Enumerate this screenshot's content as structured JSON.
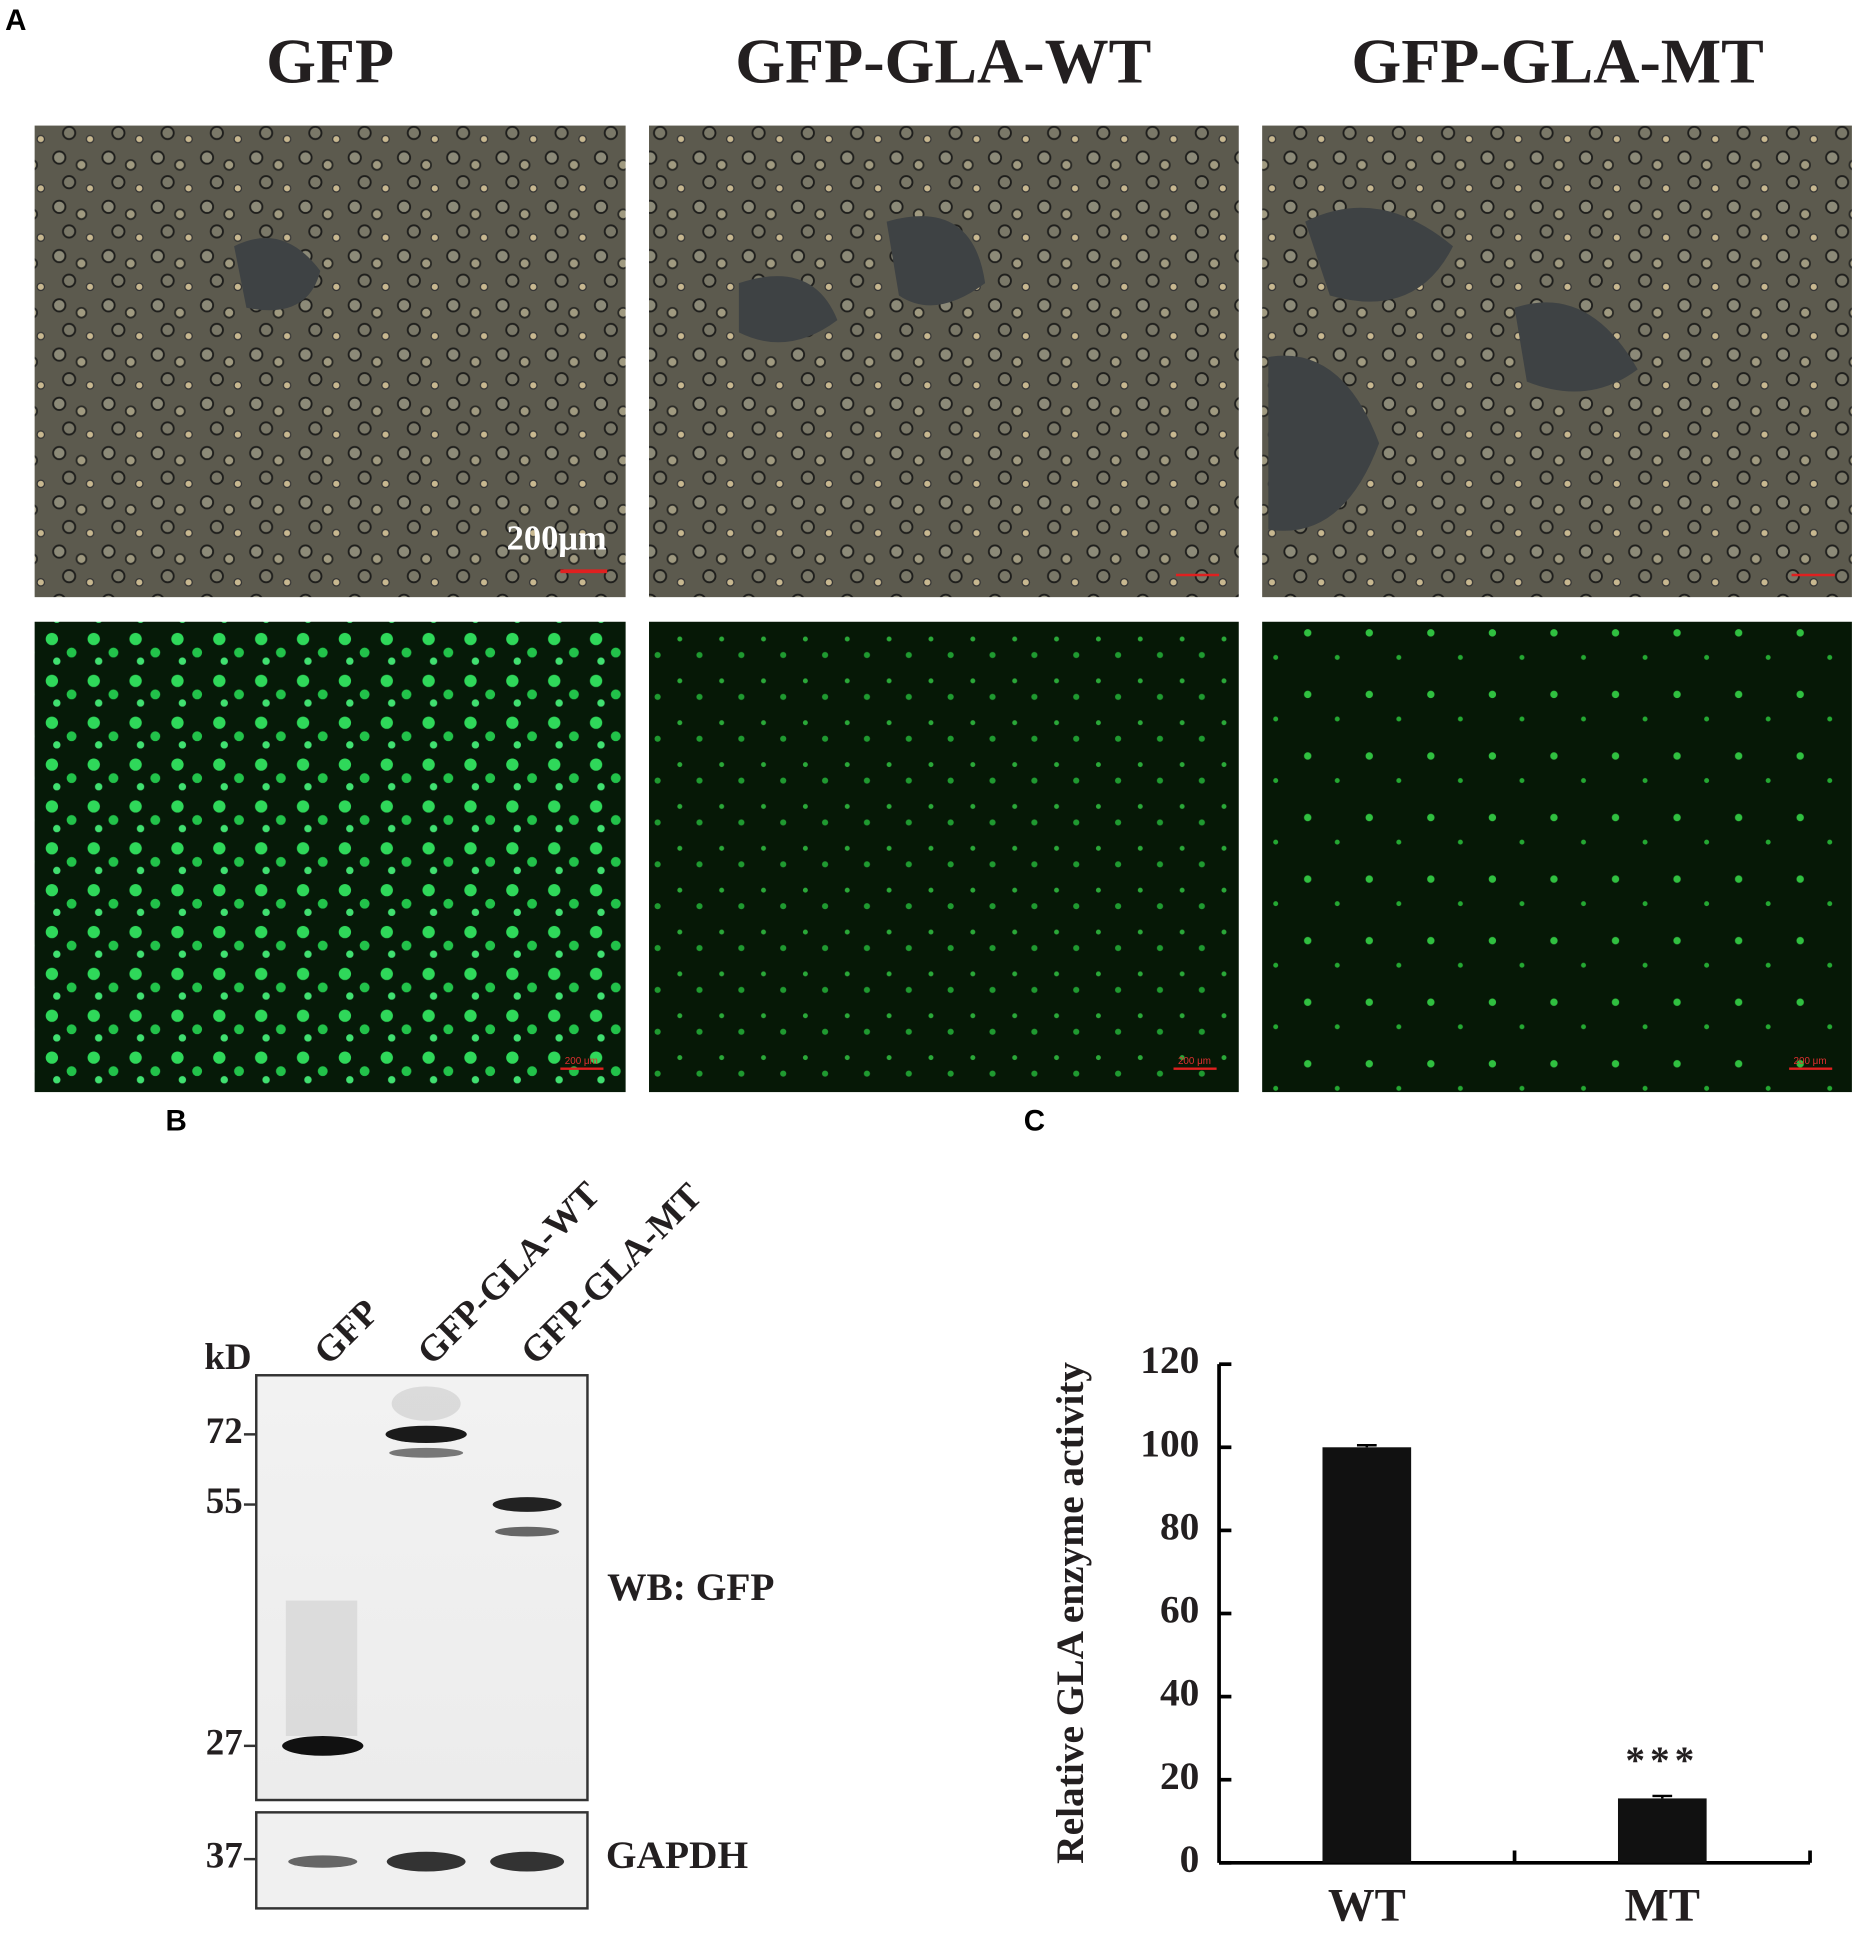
{
  "panel_a": {
    "label": "A",
    "titles": [
      "GFP",
      "GFP-GLA-WT",
      "GFP-GLA-MT"
    ],
    "scale_label": "200μm",
    "small_scale_label": "200 μm"
  },
  "panel_b": {
    "label": "B",
    "lanes": [
      "GFP",
      "GFP-GLA-WT",
      "GFP-GLA-MT"
    ],
    "unit": "kD",
    "markers": [
      72,
      55,
      27
    ],
    "loading_marker": 37,
    "blot_label": "WB: GFP",
    "loading_label": "GAPDH"
  },
  "panel_c": {
    "label": "C"
  },
  "chart_data": {
    "type": "bar",
    "y_label": "Relative GLA enzyme activity",
    "categories": [
      "WT",
      "MT"
    ],
    "values": [
      100,
      15.5
    ],
    "errors": [
      0.5,
      0.6
    ],
    "annotations": [
      null,
      "***"
    ],
    "color": "#111111",
    "ylim": [
      0,
      120
    ],
    "yticks": [
      0,
      20,
      40,
      60,
      80,
      100,
      120
    ]
  }
}
